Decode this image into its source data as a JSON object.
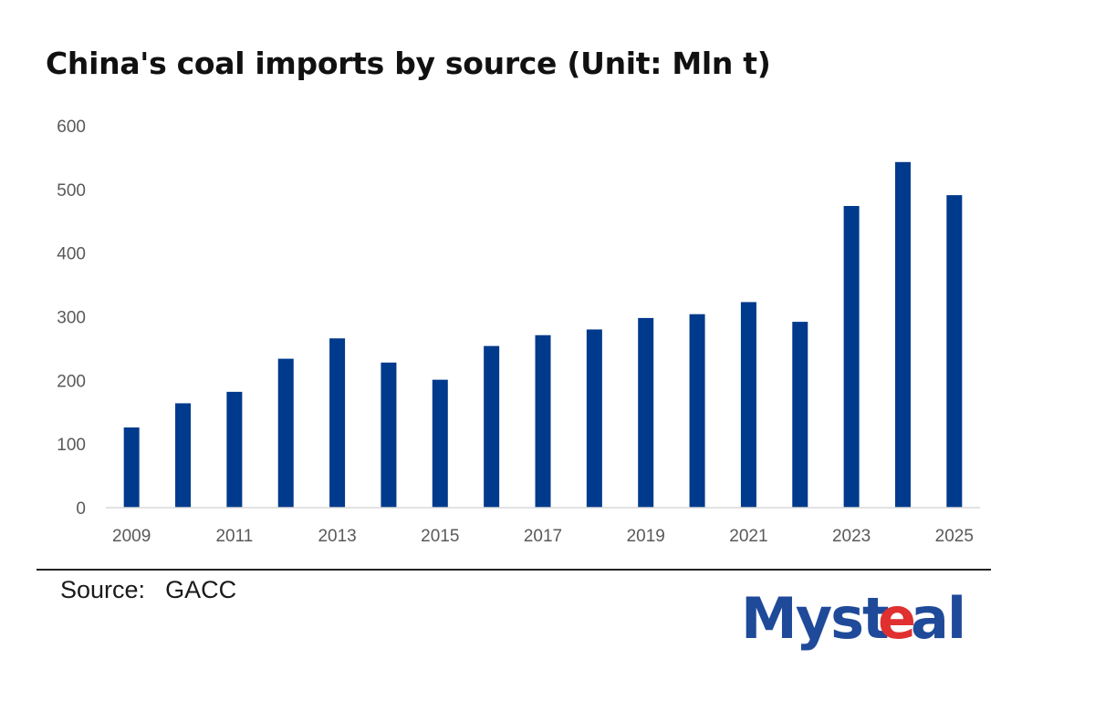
{
  "chart_data": {
    "type": "bar",
    "title": "China's coal imports by source (Unit: Mln t)",
    "categories": [
      "2009",
      "2010",
      "2011",
      "2012",
      "2013",
      "2014",
      "2015",
      "2016",
      "2017",
      "2018",
      "2019",
      "2020",
      "2021",
      "2022",
      "2023",
      "2024",
      "2025"
    ],
    "x_tick_labels": [
      "2009",
      "2011",
      "2013",
      "2015",
      "2017",
      "2019",
      "2021",
      "2023",
      "2025"
    ],
    "values": [
      126,
      164,
      182,
      234,
      266,
      228,
      201,
      254,
      271,
      280,
      298,
      304,
      323,
      292,
      474,
      543,
      491
    ],
    "y_ticks": [
      0,
      100,
      200,
      300,
      400,
      500,
      600
    ],
    "ylim": [
      0,
      600
    ],
    "bar_color": "#003A8C",
    "grid": false,
    "legend": "none"
  },
  "footer": {
    "source_label": "Source:",
    "source_value": "GACC"
  },
  "logo": {
    "text": "Mysteel",
    "color": "#1F4A9A",
    "accent_color": "#E03030"
  }
}
